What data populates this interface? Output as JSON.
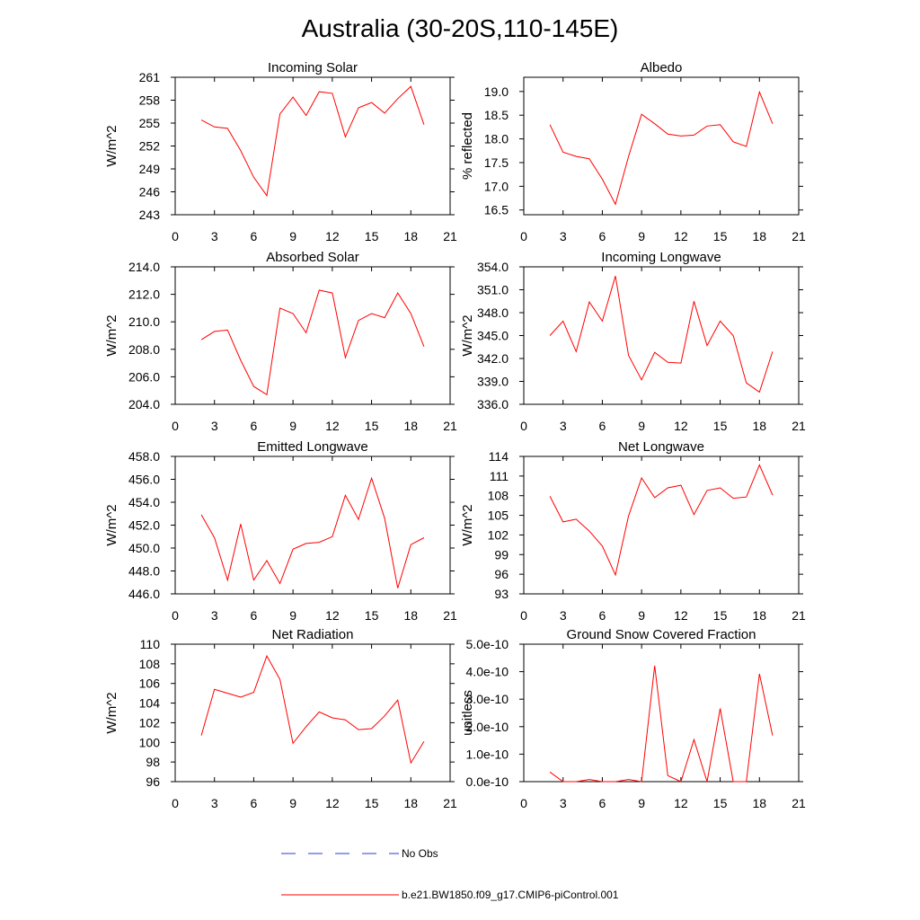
{
  "title": "Australia (30-20S,110-145E)",
  "colors": {
    "model": "#ff0000",
    "obs": "#2b3bd6",
    "axes": "#000000"
  },
  "legend": [
    {
      "label": "No Obs",
      "style": "dashed",
      "color": "#2b3bd6"
    },
    {
      "label": "b.e21.BW1850.f09_g17.CMIP6-piControl.001",
      "style": "solid",
      "color": "#ff0000"
    }
  ],
  "chart_data": [
    {
      "type": "line",
      "title": "Incoming Solar",
      "ylabel": "W/m^2",
      "xlim": [
        0,
        21
      ],
      "ylim": [
        243,
        261
      ],
      "xticks": [
        0,
        3,
        6,
        9,
        12,
        15,
        18,
        21
      ],
      "xticklabels": [
        "0",
        "3",
        "6",
        "9",
        "12",
        "15",
        "18",
        "21"
      ],
      "yticks": [
        243,
        246,
        249,
        252,
        255,
        258,
        261
      ],
      "yticklabels": [
        "243",
        "246",
        "249",
        "252",
        "255",
        "258",
        "261"
      ],
      "series": [
        {
          "x": [
            2,
            3,
            4,
            5,
            6,
            7,
            8,
            9,
            10,
            11,
            12,
            13,
            14,
            15,
            16,
            17,
            18,
            19
          ],
          "values": [
            255.4,
            254.5,
            254.3,
            251.4,
            247.9,
            245.5,
            256.2,
            258.4,
            256.0,
            259.1,
            258.9,
            253.2,
            257.0,
            257.7,
            256.3,
            258.2,
            259.8,
            254.8
          ]
        }
      ]
    },
    {
      "type": "line",
      "title": "Albedo",
      "ylabel": "% reflected",
      "xlim": [
        0,
        21
      ],
      "ylim": [
        16.4,
        19.3
      ],
      "xticks": [
        0,
        3,
        6,
        9,
        12,
        15,
        18,
        21
      ],
      "xticklabels": [
        "0",
        "3",
        "6",
        "9",
        "12",
        "15",
        "18",
        "21"
      ],
      "yticks": [
        16.5,
        17.0,
        17.5,
        18.0,
        18.5,
        19.0
      ],
      "yticklabels": [
        "16.5",
        "17.0",
        "17.5",
        "18.0",
        "18.5",
        "19.0"
      ],
      "series": [
        {
          "x": [
            2,
            3,
            4,
            5,
            6,
            7,
            8,
            9,
            10,
            11,
            12,
            13,
            14,
            15,
            16,
            17,
            18,
            19
          ],
          "values": [
            18.3,
            17.72,
            17.63,
            17.58,
            17.15,
            16.62,
            17.63,
            18.52,
            18.32,
            18.1,
            18.06,
            18.08,
            18.27,
            18.3,
            17.94,
            17.84,
            18.99,
            18.32
          ]
        }
      ]
    },
    {
      "type": "line",
      "title": "Absorbed Solar",
      "ylabel": "W/m^2",
      "xlim": [
        0,
        21
      ],
      "ylim": [
        204,
        214
      ],
      "xticks": [
        0,
        3,
        6,
        9,
        12,
        15,
        18,
        21
      ],
      "xticklabels": [
        "0",
        "3",
        "6",
        "9",
        "12",
        "15",
        "18",
        "21"
      ],
      "yticks": [
        204,
        206,
        208,
        210,
        212,
        214
      ],
      "yticklabels": [
        "204.0",
        "206.0",
        "208.0",
        "210.0",
        "212.0",
        "214.0"
      ],
      "series": [
        {
          "x": [
            2,
            3,
            4,
            5,
            6,
            7,
            8,
            9,
            10,
            11,
            12,
            13,
            14,
            15,
            16,
            17,
            18,
            19
          ],
          "values": [
            208.7,
            209.3,
            209.4,
            207.2,
            205.3,
            204.7,
            211.0,
            210.6,
            209.2,
            212.3,
            212.1,
            207.4,
            210.1,
            210.6,
            210.3,
            212.1,
            210.6,
            208.2
          ]
        }
      ]
    },
    {
      "type": "line",
      "title": "Incoming Longwave",
      "ylabel": "W/m^2",
      "xlim": [
        0,
        21
      ],
      "ylim": [
        336,
        354
      ],
      "xticks": [
        0,
        3,
        6,
        9,
        12,
        15,
        18,
        21
      ],
      "xticklabels": [
        "0",
        "3",
        "6",
        "9",
        "12",
        "15",
        "18",
        "21"
      ],
      "yticks": [
        336,
        339,
        342,
        345,
        348,
        351,
        354
      ],
      "yticklabels": [
        "336.0",
        "339.0",
        "342.0",
        "345.0",
        "348.0",
        "351.0",
        "354.0"
      ],
      "series": [
        {
          "x": [
            2,
            3,
            4,
            5,
            6,
            7,
            8,
            9,
            10,
            11,
            12,
            13,
            14,
            15,
            16,
            17,
            18,
            19
          ],
          "values": [
            345.0,
            346.9,
            342.9,
            349.4,
            346.9,
            352.8,
            342.4,
            339.2,
            342.8,
            341.5,
            341.4,
            349.5,
            343.7,
            346.9,
            345.0,
            338.8,
            337.6,
            342.9
          ]
        }
      ]
    },
    {
      "type": "line",
      "title": "Emitted Longwave",
      "ylabel": "W/m^2",
      "xlim": [
        0,
        21
      ],
      "ylim": [
        446,
        458
      ],
      "xticks": [
        0,
        3,
        6,
        9,
        12,
        15,
        18,
        21
      ],
      "xticklabels": [
        "0",
        "3",
        "6",
        "9",
        "12",
        "15",
        "18",
        "21"
      ],
      "yticks": [
        446,
        448,
        450,
        452,
        454,
        456,
        458
      ],
      "yticklabels": [
        "446.0",
        "448.0",
        "450.0",
        "452.0",
        "454.0",
        "456.0",
        "458.0"
      ],
      "series": [
        {
          "x": [
            2,
            3,
            4,
            5,
            6,
            7,
            8,
            9,
            10,
            11,
            12,
            13,
            14,
            15,
            16,
            17,
            18,
            19
          ],
          "values": [
            452.9,
            450.9,
            447.2,
            452.1,
            447.2,
            448.9,
            446.9,
            449.9,
            450.4,
            450.5,
            451.0,
            454.6,
            452.5,
            456.1,
            452.6,
            446.5,
            450.3,
            450.9
          ]
        }
      ]
    },
    {
      "type": "line",
      "title": "Net Longwave",
      "ylabel": "W/m^2",
      "xlim": [
        0,
        21
      ],
      "ylim": [
        93,
        114
      ],
      "xticks": [
        0,
        3,
        6,
        9,
        12,
        15,
        18,
        21
      ],
      "xticklabels": [
        "0",
        "3",
        "6",
        "9",
        "12",
        "15",
        "18",
        "21"
      ],
      "yticks": [
        93,
        96,
        99,
        102,
        105,
        108,
        111,
        114
      ],
      "yticklabels": [
        "93",
        "96",
        "99",
        "102",
        "105",
        "108",
        "111",
        "114"
      ],
      "series": [
        {
          "x": [
            2,
            3,
            4,
            5,
            6,
            7,
            8,
            9,
            10,
            11,
            12,
            13,
            14,
            15,
            16,
            17,
            18,
            19
          ],
          "values": [
            107.9,
            104.0,
            104.4,
            102.6,
            100.3,
            95.9,
            104.9,
            110.7,
            107.7,
            109.2,
            109.6,
            105.1,
            108.8,
            109.2,
            107.6,
            107.8,
            112.7,
            108.1
          ]
        }
      ]
    },
    {
      "type": "line",
      "title": "Net Radiation",
      "ylabel": "W/m^2",
      "xlim": [
        0,
        21
      ],
      "ylim": [
        96,
        110
      ],
      "xticks": [
        0,
        3,
        6,
        9,
        12,
        15,
        18,
        21
      ],
      "xticklabels": [
        "0",
        "3",
        "6",
        "9",
        "12",
        "15",
        "18",
        "21"
      ],
      "yticks": [
        96,
        98,
        100,
        102,
        104,
        106,
        108,
        110
      ],
      "yticklabels": [
        "96",
        "98",
        "100",
        "102",
        "104",
        "106",
        "108",
        "110"
      ],
      "series": [
        {
          "x": [
            2,
            3,
            4,
            5,
            6,
            7,
            8,
            9,
            10,
            11,
            12,
            13,
            14,
            15,
            16,
            17,
            18,
            19
          ],
          "values": [
            100.7,
            105.4,
            105.0,
            104.6,
            105.1,
            108.8,
            106.4,
            99.9,
            101.6,
            103.1,
            102.5,
            102.3,
            101.3,
            101.4,
            102.7,
            104.3,
            97.9,
            100.1
          ]
        }
      ]
    },
    {
      "type": "line",
      "title": "Ground Snow Covered Fraction",
      "ylabel": "unitless",
      "xlim": [
        0,
        21
      ],
      "ylim": [
        0,
        5e-10
      ],
      "xticks": [
        0,
        3,
        6,
        9,
        12,
        15,
        18,
        21
      ],
      "xticklabels": [
        "0",
        "3",
        "6",
        "9",
        "12",
        "15",
        "18",
        "21"
      ],
      "yticks": [
        0,
        1e-10,
        2e-10,
        3e-10,
        4e-10,
        5e-10
      ],
      "yticklabels": [
        "0.0e-10",
        "1.0e-10",
        "2.0e-10",
        "3.0e-10",
        "4.0e-10",
        "5.0e-10"
      ],
      "series": [
        {
          "x": [
            2,
            3,
            4,
            5,
            6,
            7,
            8,
            9,
            10,
            11,
            12,
            13,
            14,
            15,
            16,
            17,
            18,
            19
          ],
          "values": [
            3.5e-11,
            0,
            0,
            8e-12,
            0,
            0,
            8e-12,
            0,
            4.22e-10,
            2.2e-11,
            0,
            1.53e-10,
            0,
            2.66e-10,
            0,
            0,
            3.92e-10,
            1.68e-10
          ]
        }
      ]
    }
  ]
}
